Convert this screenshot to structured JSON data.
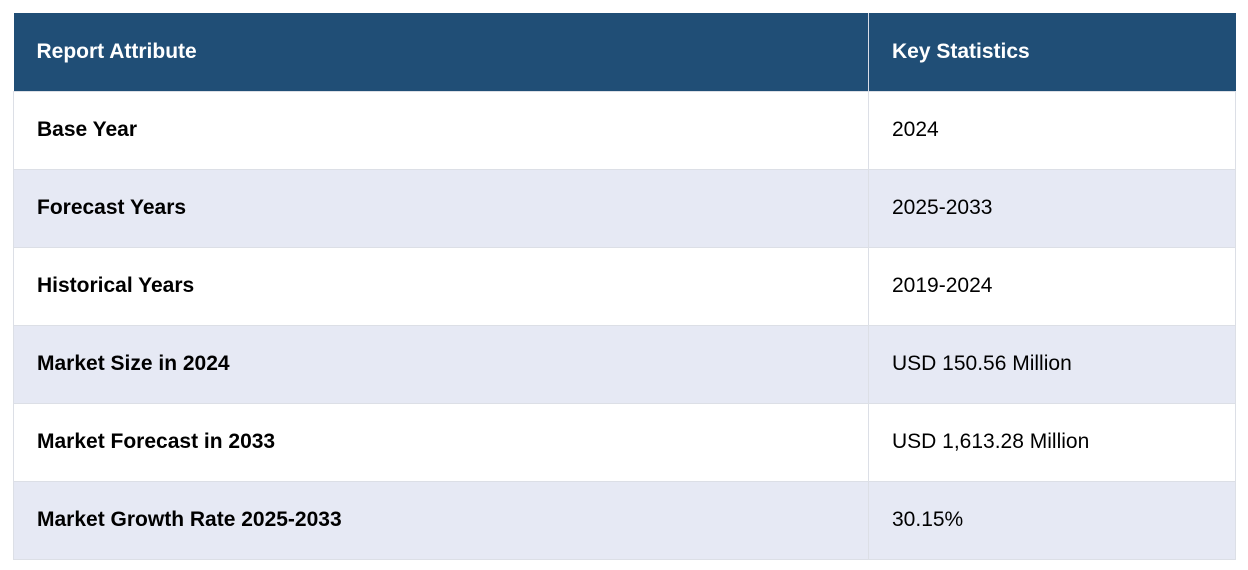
{
  "table": {
    "headers": [
      "Report Attribute",
      "Key Statistics"
    ],
    "rows": [
      {
        "attribute": "Base Year",
        "value": "2024"
      },
      {
        "attribute": "Forecast Years",
        "value": "2025-2033"
      },
      {
        "attribute": "Historical Years",
        "value": "2019-2024"
      },
      {
        "attribute": "Market Size in 2024",
        "value": "USD 150.56 Million"
      },
      {
        "attribute": "Market Forecast in 2033",
        "value": "USD 1,613.28 Million"
      },
      {
        "attribute": "Market Growth Rate 2025-2033",
        "value": "30.15%"
      }
    ]
  },
  "colors": {
    "header_bg": "#204e76",
    "header_text": "#ffffff",
    "stripe_bg": "#e6e9f4",
    "border": "#dcdfe6"
  }
}
